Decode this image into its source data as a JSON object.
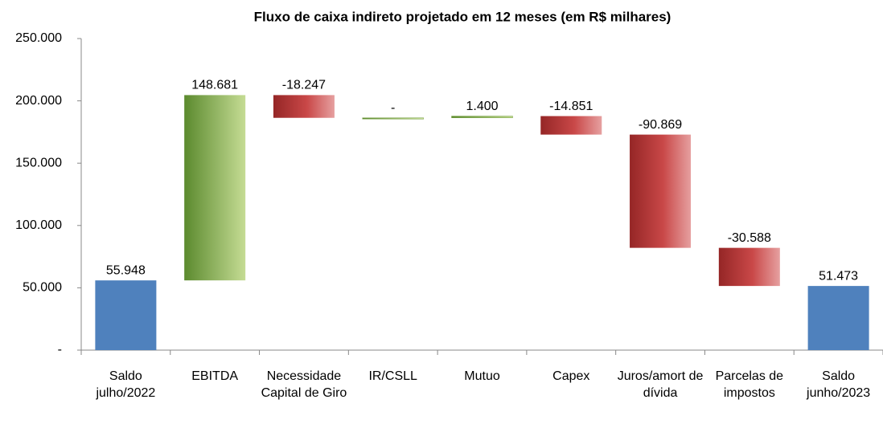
{
  "chart_data": {
    "type": "waterfall",
    "title": "Fluxo de caixa indireto projetado em 12 meses (em  R$ milhares)",
    "categories": [
      "Saldo julho/2022",
      "EBITDA",
      "Necessidade Capital de Giro",
      "IR/CSLL",
      "Mutuo",
      "Capex",
      "Juros/amort de dívida",
      "Parcelas de impostos",
      "Saldo junho/2023"
    ],
    "values": [
      55948,
      148681,
      -18247,
      0,
      1400,
      -14851,
      -90869,
      -30588,
      51473
    ],
    "value_labels": [
      "55.948",
      "148.681",
      "-18.247",
      "-",
      "1.400",
      "-14.851",
      "-90.869",
      "-30.588",
      "51.473"
    ],
    "bar_kinds": [
      "total",
      "delta",
      "delta",
      "delta",
      "delta",
      "delta",
      "delta",
      "delta",
      "total"
    ],
    "colors": {
      "total": "#4f81bd",
      "increase": "#77a043",
      "decrease": "#b03a3a"
    },
    "ylim": [
      0,
      250000
    ],
    "yticks": [
      {
        "value": 0,
        "label": "-"
      },
      {
        "value": 50000,
        "label": "50.000"
      },
      {
        "value": 100000,
        "label": "100.000"
      },
      {
        "value": 150000,
        "label": "150.000"
      },
      {
        "value": 200000,
        "label": "200.000"
      },
      {
        "value": 250000,
        "label": "250.000"
      }
    ],
    "grid": false
  }
}
